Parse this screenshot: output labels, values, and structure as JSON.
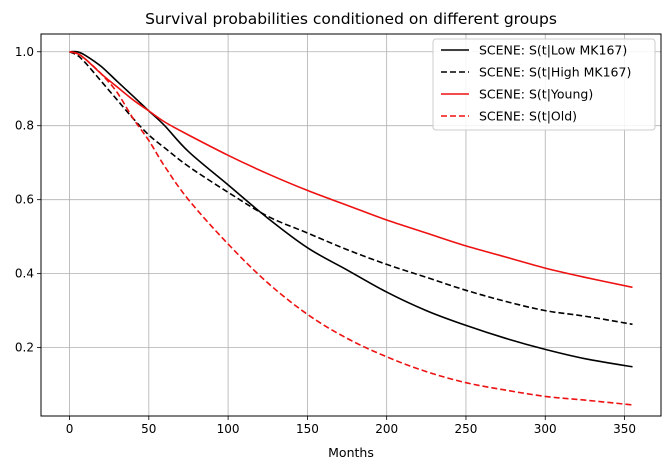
{
  "chart_data": {
    "type": "line",
    "title": "Survival probabilities conditioned on different groups",
    "xlabel": "Months",
    "ylabel": "",
    "xlim": [
      -18,
      373
    ],
    "ylim": [
      0.015,
      1.048
    ],
    "xticks": [
      0,
      50,
      100,
      150,
      200,
      250,
      300,
      350
    ],
    "yticks": [
      0.2,
      0.4,
      0.6,
      0.8,
      1.0
    ],
    "xtick_labels": [
      "0",
      "50",
      "100",
      "150",
      "200",
      "250",
      "300",
      "350"
    ],
    "ytick_labels": [
      "0.2",
      "0.4",
      "0.6",
      "0.8",
      "1.0"
    ],
    "grid": true,
    "legend_position": "top-right",
    "series": [
      {
        "name": "SCENE: S(t|Low MK167)",
        "color": "#000000",
        "dash": "solid",
        "x": [
          0,
          5,
          10,
          20,
          30,
          40,
          50,
          60,
          75,
          100,
          125,
          150,
          175,
          200,
          225,
          250,
          275,
          300,
          325,
          355
        ],
        "y": [
          1.0,
          1.0,
          0.99,
          0.96,
          0.92,
          0.88,
          0.84,
          0.8,
          0.73,
          0.64,
          0.55,
          0.47,
          0.41,
          0.35,
          0.3,
          0.26,
          0.225,
          0.195,
          0.17,
          0.148
        ]
      },
      {
        "name": "SCENE: S(t|High MK167)",
        "color": "#000000",
        "dash": "dashed",
        "x": [
          0,
          5,
          10,
          20,
          30,
          40,
          50,
          60,
          75,
          100,
          125,
          150,
          175,
          200,
          225,
          250,
          275,
          300,
          325,
          355
        ],
        "y": [
          1.0,
          0.99,
          0.97,
          0.92,
          0.87,
          0.82,
          0.775,
          0.74,
          0.69,
          0.62,
          0.555,
          0.51,
          0.465,
          0.425,
          0.39,
          0.355,
          0.325,
          0.3,
          0.285,
          0.263
        ]
      },
      {
        "name": "SCENE: S(t|Young)",
        "color": "#ee1111",
        "dash": "solid",
        "x": [
          0,
          5,
          10,
          20,
          30,
          40,
          50,
          60,
          75,
          100,
          125,
          150,
          175,
          200,
          225,
          250,
          275,
          300,
          325,
          355
        ],
        "y": [
          1.0,
          0.995,
          0.98,
          0.94,
          0.905,
          0.87,
          0.84,
          0.81,
          0.775,
          0.72,
          0.67,
          0.625,
          0.585,
          0.545,
          0.51,
          0.475,
          0.445,
          0.415,
          0.39,
          0.363
        ]
      },
      {
        "name": "SCENE: S(t|Old)",
        "color": "#ee1111",
        "dash": "dashed",
        "x": [
          0,
          5,
          10,
          20,
          30,
          40,
          50,
          60,
          75,
          100,
          125,
          150,
          175,
          200,
          225,
          250,
          275,
          300,
          325,
          355
        ],
        "y": [
          1.0,
          0.995,
          0.98,
          0.94,
          0.89,
          0.82,
          0.76,
          0.69,
          0.6,
          0.48,
          0.375,
          0.29,
          0.225,
          0.175,
          0.135,
          0.105,
          0.085,
          0.068,
          0.058,
          0.045
        ]
      }
    ]
  }
}
